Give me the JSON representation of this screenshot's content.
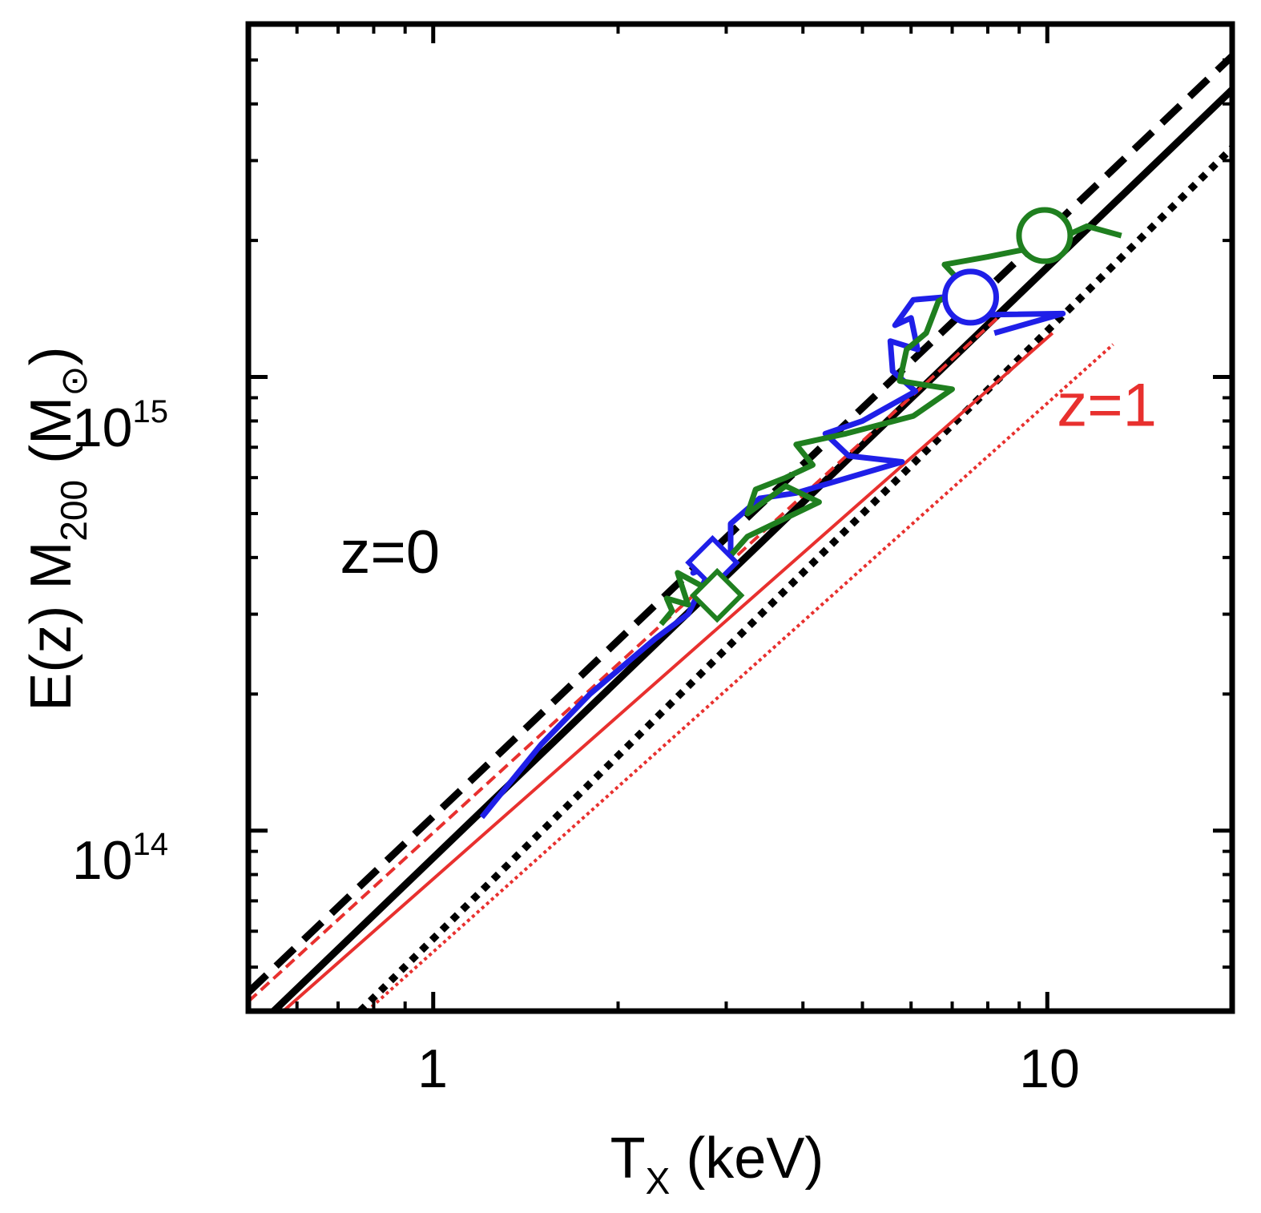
{
  "chart_data": {
    "type": "line",
    "title": "",
    "xlabel": {
      "main": "T",
      "sub": "X",
      "suffix": " (keV)"
    },
    "ylabel": {
      "prefix": "E(z) M",
      "sub": "200",
      "suffix": " (M",
      "sun": "⊙",
      "close": ")"
    },
    "x_scale": "log",
    "y_scale": "log",
    "xlim": [
      0.5,
      20
    ],
    "ylim": [
      40000000000000.0,
      6000000000000000.0
    ],
    "x_ticks": [
      {
        "value": 1,
        "label": "1"
      },
      {
        "value": 10,
        "label": "10"
      }
    ],
    "y_ticks": [
      {
        "value": 100000000000000.0,
        "base": "10",
        "exp": "14"
      },
      {
        "value": 1000000000000000.0,
        "base": "10",
        "exp": "15"
      }
    ],
    "annotations": [
      {
        "text": "z=0",
        "color": "#000000",
        "x": 0.85,
        "y": 370000000000000.0
      },
      {
        "text": "z=1",
        "color": "#e8302e",
        "x": 12.5,
        "y": 780000000000000.0
      }
    ],
    "series": [
      {
        "name": "z=0 dashed",
        "color": "#000000",
        "style": "dashed",
        "width": 9,
        "x": [
          0.5,
          20
        ],
        "y": [
          44000000000000.0,
          5100000000000000.0
        ]
      },
      {
        "name": "z=0 solid",
        "color": "#000000",
        "style": "solid",
        "width": 9,
        "x": [
          0.55,
          20
        ],
        "y": [
          40000000000000.0,
          4300000000000000.0
        ]
      },
      {
        "name": "z=0 dotted",
        "color": "#000000",
        "style": "dotted",
        "width": 9,
        "x": [
          0.76,
          20
        ],
        "y": [
          40000000000000.0,
          3200000000000000.0
        ]
      },
      {
        "name": "z=1 dashed",
        "color": "#e8302e",
        "style": "dashed",
        "width": 4,
        "x": [
          0.5,
          8.4
        ],
        "y": [
          42000000000000.0,
          1370000000000000.0
        ]
      },
      {
        "name": "z=1 solid",
        "color": "#e8302e",
        "style": "solid",
        "width": 4,
        "x": [
          0.57,
          10.2
        ],
        "y": [
          40000000000000.0,
          1250000000000000.0
        ]
      },
      {
        "name": "z=1 dotted",
        "color": "#e8302e",
        "style": "dotted",
        "width": 4,
        "x": [
          0.78,
          12.8
        ],
        "y": [
          40000000000000.0,
          1180000000000000.0
        ]
      },
      {
        "name": "blue track",
        "color": "#1f1fe8",
        "style": "solid",
        "width": 7,
        "x": [
          1.2,
          1.5,
          1.8,
          2.3,
          2.6,
          2.85,
          2.65,
          2.85,
          3.05,
          3.05,
          3.4,
          3.9,
          5.8,
          4.75,
          4.35,
          5.0,
          6.1,
          5.6,
          5.55,
          6.15,
          6.0,
          5.65,
          6.05,
          6.8,
          7.4,
          10.6,
          8.2
        ],
        "y": [
          107000000000000.0,
          155000000000000.0,
          200000000000000.0,
          265000000000000.0,
          300000000000000.0,
          385000000000000.0,
          370000000000000.0,
          412000000000000.0,
          392000000000000.0,
          475000000000000.0,
          540000000000000.0,
          555000000000000.0,
          650000000000000.0,
          670000000000000.0,
          750000000000000.0,
          800000000000000.0,
          930000000000000.0,
          1030000000000000.0,
          1200000000000000.0,
          1150000000000000.0,
          1350000000000000.0,
          1300000000000000.0,
          1480000000000000.0,
          1500000000000000.0,
          1370000000000000.0,
          1380000000000000.0,
          1250000000000000.0
        ]
      },
      {
        "name": "green track",
        "color": "#1f7f1f",
        "style": "solid",
        "width": 7,
        "x": [
          2.35,
          2.45,
          2.4,
          2.6,
          2.5,
          2.75,
          3.25,
          4.25,
          3.75,
          3.25,
          3.35,
          3.75,
          4.15,
          3.9,
          4.7,
          6.05,
          7.0,
          5.75,
          5.9,
          6.35,
          6.65,
          7.35,
          6.8,
          8.0,
          9.9,
          11.6,
          13.2
        ],
        "y": [
          285000000000000.0,
          305000000000000.0,
          325000000000000.0,
          315000000000000.0,
          370000000000000.0,
          345000000000000.0,
          445000000000000.0,
          530000000000000.0,
          575000000000000.0,
          500000000000000.0,
          565000000000000.0,
          600000000000000.0,
          640000000000000.0,
          710000000000000.0,
          750000000000000.0,
          820000000000000.0,
          940000000000000.0,
          980000000000000.0,
          1150000000000000.0,
          1250000000000000.0,
          1470000000000000.0,
          1580000000000000.0,
          1770000000000000.0,
          1840000000000000.0,
          1950000000000000.0,
          2150000000000000.0,
          2050000000000000.0
        ]
      }
    ],
    "markers": [
      {
        "name": "blue diamond",
        "shape": "diamond",
        "color": "#1f1fe8",
        "x": 2.85,
        "y": 390000000000000.0
      },
      {
        "name": "green diamond",
        "shape": "diamond",
        "color": "#1f7f1f",
        "x": 2.9,
        "y": 330000000000000.0
      },
      {
        "name": "blue circle",
        "shape": "circle",
        "color": "#1f1fe8",
        "x": 7.5,
        "y": 1500000000000000.0
      },
      {
        "name": "green circle",
        "shape": "circle",
        "color": "#1f7f1f",
        "x": 9.9,
        "y": 2050000000000000.0
      }
    ]
  }
}
